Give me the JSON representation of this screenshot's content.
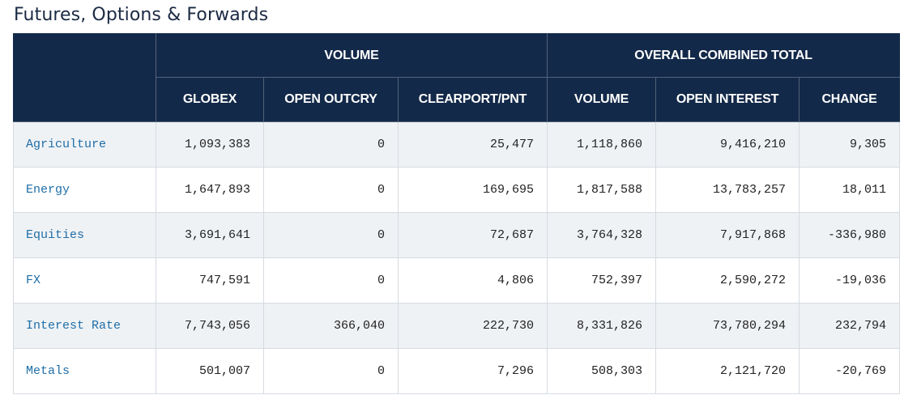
{
  "page": {
    "title": "Futures, Options & Forwards"
  },
  "table": {
    "group_headers": {
      "volume": "VOLUME",
      "overall": "OVERALL COMBINED TOTAL"
    },
    "columns": [
      "GLOBEX",
      "OPEN OUTCRY",
      "CLEARPORT/PNT",
      "VOLUME",
      "OPEN INTEREST",
      "CHANGE"
    ],
    "rows": [
      {
        "name": "Agriculture",
        "globex": "1,093,383",
        "open_outcry": "0",
        "clearport": "25,477",
        "volume": "1,118,860",
        "open_interest": "9,416,210",
        "change": "9,305"
      },
      {
        "name": "Energy",
        "globex": "1,647,893",
        "open_outcry": "0",
        "clearport": "169,695",
        "volume": "1,817,588",
        "open_interest": "13,783,257",
        "change": "18,011"
      },
      {
        "name": "Equities",
        "globex": "3,691,641",
        "open_outcry": "0",
        "clearport": "72,687",
        "volume": "3,764,328",
        "open_interest": "7,917,868",
        "change": "-336,980"
      },
      {
        "name": "FX",
        "globex": "747,591",
        "open_outcry": "0",
        "clearport": "4,806",
        "volume": "752,397",
        "open_interest": "2,590,272",
        "change": "-19,036"
      },
      {
        "name": "Interest Rate",
        "globex": "7,743,056",
        "open_outcry": "366,040",
        "clearport": "222,730",
        "volume": "8,331,826",
        "open_interest": "73,780,294",
        "change": "232,794"
      },
      {
        "name": "Metals",
        "globex": "501,007",
        "open_outcry": "0",
        "clearport": "7,296",
        "volume": "508,303",
        "open_interest": "2,121,720",
        "change": "-20,769"
      }
    ]
  }
}
